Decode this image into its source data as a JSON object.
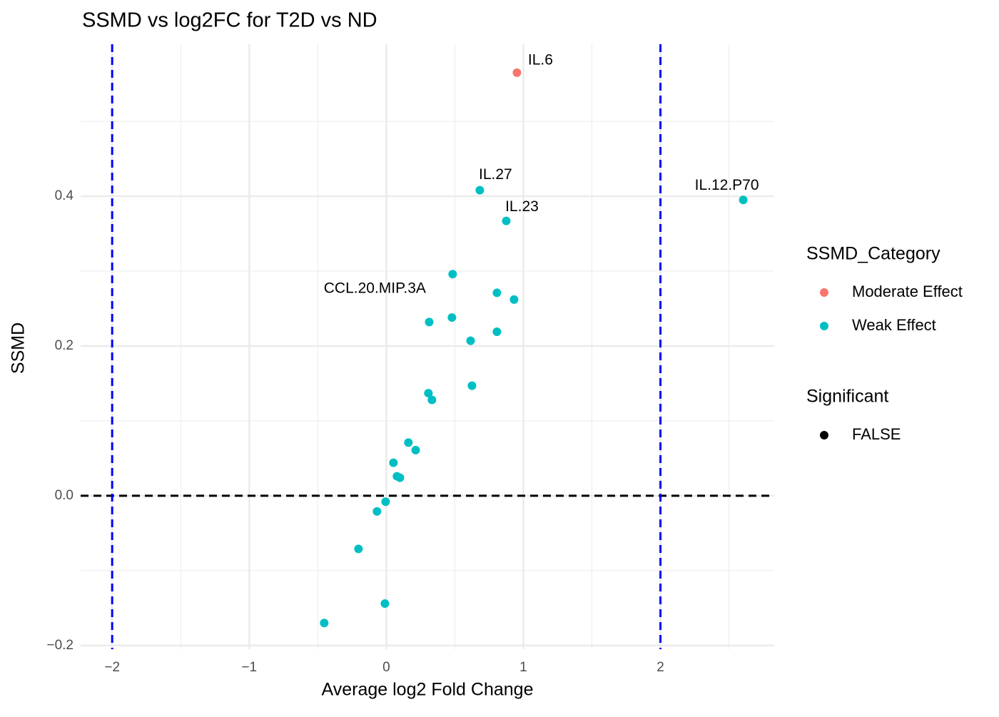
{
  "chart_data": {
    "type": "scatter",
    "title": "SSMD vs log2FC for T2D vs ND",
    "x_label": "Average log2 Fold Change",
    "y_label": "SSMD",
    "xlim": [
      -2.23,
      2.83
    ],
    "ylim": [
      -0.205,
      0.603
    ],
    "xticks": [
      {
        "value": -2,
        "label": "−2"
      },
      {
        "value": -1,
        "label": "−1"
      },
      {
        "value": 0,
        "label": "0"
      },
      1,
      2
    ],
    "yticks": [
      {
        "value": -0.2,
        "label": "−0.2"
      },
      {
        "value": 0,
        "label": "0.0"
      },
      0.2,
      0.4
    ],
    "xminor": [
      -1.5,
      -0.5,
      0.5,
      1.5,
      2.5
    ],
    "yminor": [
      -0.1,
      0.1,
      0.3,
      0.5
    ],
    "grid": true,
    "vlines": [
      -2,
      2
    ],
    "vline_color": "#0000FF",
    "hlines": [
      0
    ],
    "hline_color": "#000000",
    "legend_title": "SSMD_Category",
    "series": [
      {
        "name": "Moderate Effect",
        "color": "#F8766D",
        "x": [
          0.953
        ],
        "values": [
          0.565
        ],
        "labels": [
          "IL.6"
        ]
      },
      {
        "name": "Weak Effect",
        "color": "#00BFC4",
        "x": [
          0.682,
          2.604,
          0.875,
          0.484,
          0.807,
          0.932,
          0.479,
          0.313,
          0.807,
          0.615,
          0.625,
          0.307,
          0.333,
          0.161,
          0.214,
          0.052,
          0.078,
          0.099,
          -0.005,
          -0.068,
          -0.203,
          -0.01,
          -0.453
        ],
        "values": [
          0.408,
          0.395,
          0.367,
          0.296,
          0.271,
          0.262,
          0.238,
          0.232,
          0.219,
          0.207,
          0.147,
          0.137,
          0.128,
          0.071,
          0.061,
          0.044,
          0.026,
          0.024,
          -0.008,
          -0.021,
          -0.071,
          -0.144,
          -0.17
        ],
        "labels": [
          "IL.27",
          "IL.12.P70",
          "IL.23",
          "CCL.20.MIP.3A",
          null,
          null,
          null,
          null,
          null,
          null,
          null,
          null,
          null,
          null,
          null,
          null,
          null,
          null,
          null,
          null,
          null,
          null,
          null
        ]
      }
    ],
    "shape_legend": {
      "title": "Significant",
      "labels": [
        "FALSE"
      ],
      "color": "#000000"
    }
  }
}
